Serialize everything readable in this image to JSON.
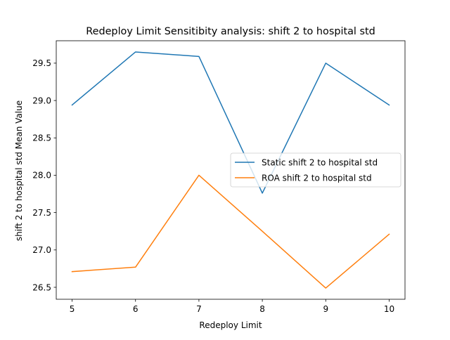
{
  "chart_data": {
    "type": "line",
    "title": "Redeploy Limit Sensitibity analysis: shift 2 to hospital std",
    "xlabel": "Redeploy Limit",
    "ylabel": "shift 2 to hospital std Mean Value",
    "x": [
      5,
      6,
      7,
      8,
      9,
      10
    ],
    "xlim": [
      4.75,
      10.25
    ],
    "ylim": [
      26.34,
      29.8
    ],
    "xticks": [
      5,
      6,
      7,
      8,
      9,
      10
    ],
    "yticks": [
      26.5,
      27.0,
      27.5,
      28.0,
      28.5,
      29.0,
      29.5
    ],
    "ytick_labels": [
      "26.5",
      "27.0",
      "27.5",
      "28.0",
      "28.5",
      "29.0",
      "29.5"
    ],
    "grid": false,
    "legend_position": "center-right",
    "series": [
      {
        "name": "Static shift 2 to hospital std",
        "color": "#1f77b4",
        "values": [
          28.94,
          29.65,
          29.59,
          27.76,
          29.5,
          28.94
        ]
      },
      {
        "name": "ROA shift 2 to hospital std",
        "color": "#ff7f0e",
        "values": [
          26.71,
          26.77,
          28.0,
          27.25,
          26.49,
          27.21
        ]
      }
    ]
  }
}
